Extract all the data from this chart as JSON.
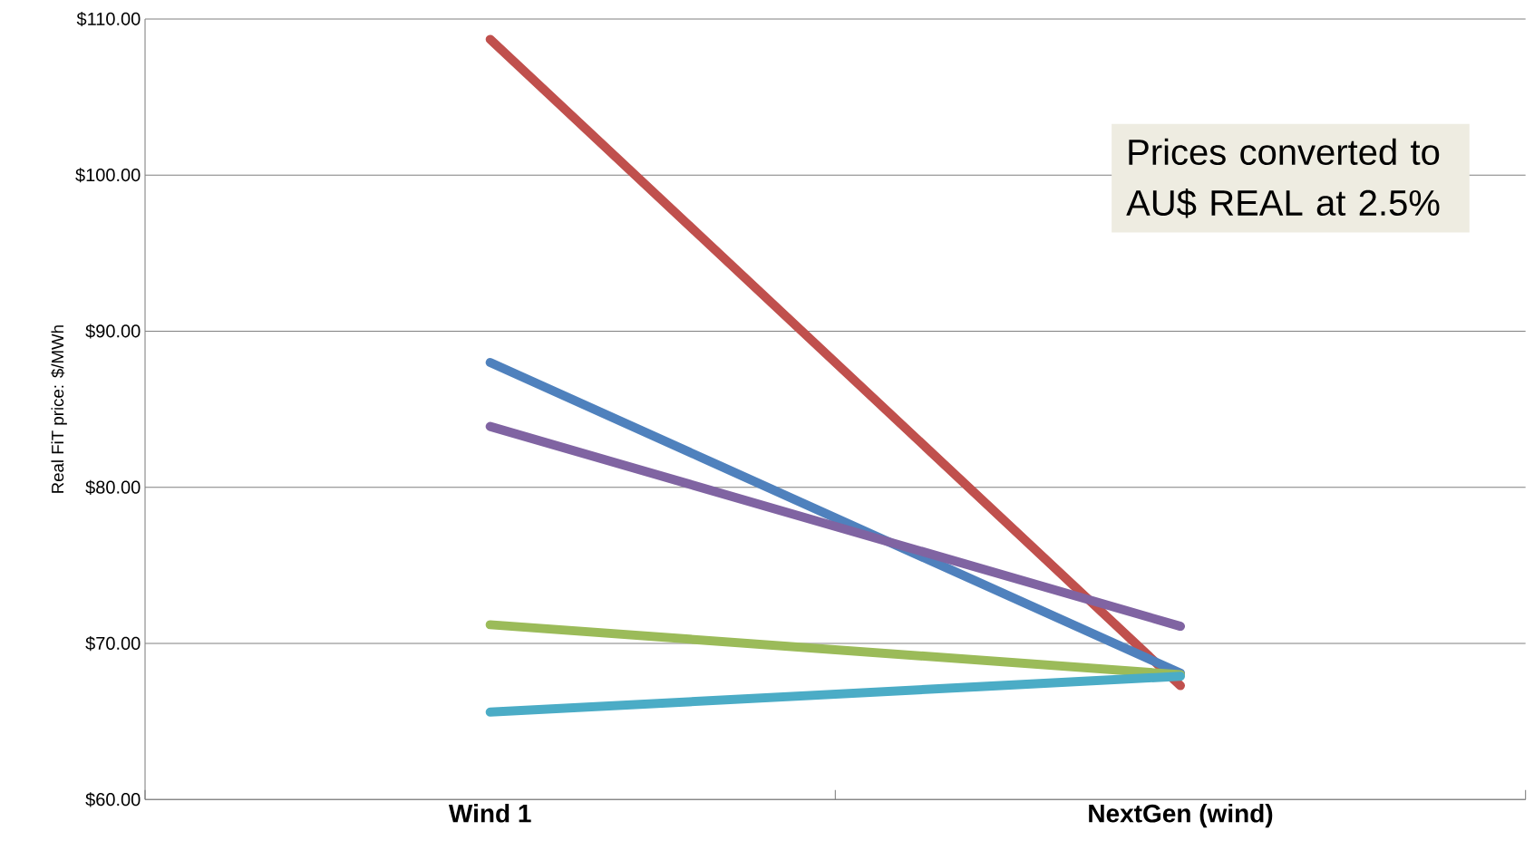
{
  "chart_data": {
    "type": "line",
    "ylabel": "Real FiT price: $/MWh",
    "categories": [
      "Wind 1",
      "NextGen (wind)"
    ],
    "series": [
      {
        "color": "#c0504d",
        "values": [
          108.7,
          67.3
        ]
      },
      {
        "color": "#4f81bd",
        "values": [
          88.0,
          68.1
        ]
      },
      {
        "color": "#8064a2",
        "values": [
          83.9,
          71.1
        ]
      },
      {
        "color": "#9bbb59",
        "values": [
          71.2,
          68.0
        ]
      },
      {
        "color": "#4bacc6",
        "values": [
          65.6,
          67.9
        ]
      }
    ],
    "ylim": [
      60,
      110
    ],
    "yticks": [
      {
        "value": 60,
        "label": "$60.00"
      },
      {
        "value": 70,
        "label": "$70.00"
      },
      {
        "value": 80,
        "label": "$80.00"
      },
      {
        "value": 90,
        "label": "$90.00"
      },
      {
        "value": 100,
        "label": "$100.00"
      },
      {
        "value": 110,
        "label": "$110.00"
      }
    ],
    "grid": "y",
    "annotations": [
      "Prices converted to AU$ REAL at 2.5%"
    ]
  }
}
